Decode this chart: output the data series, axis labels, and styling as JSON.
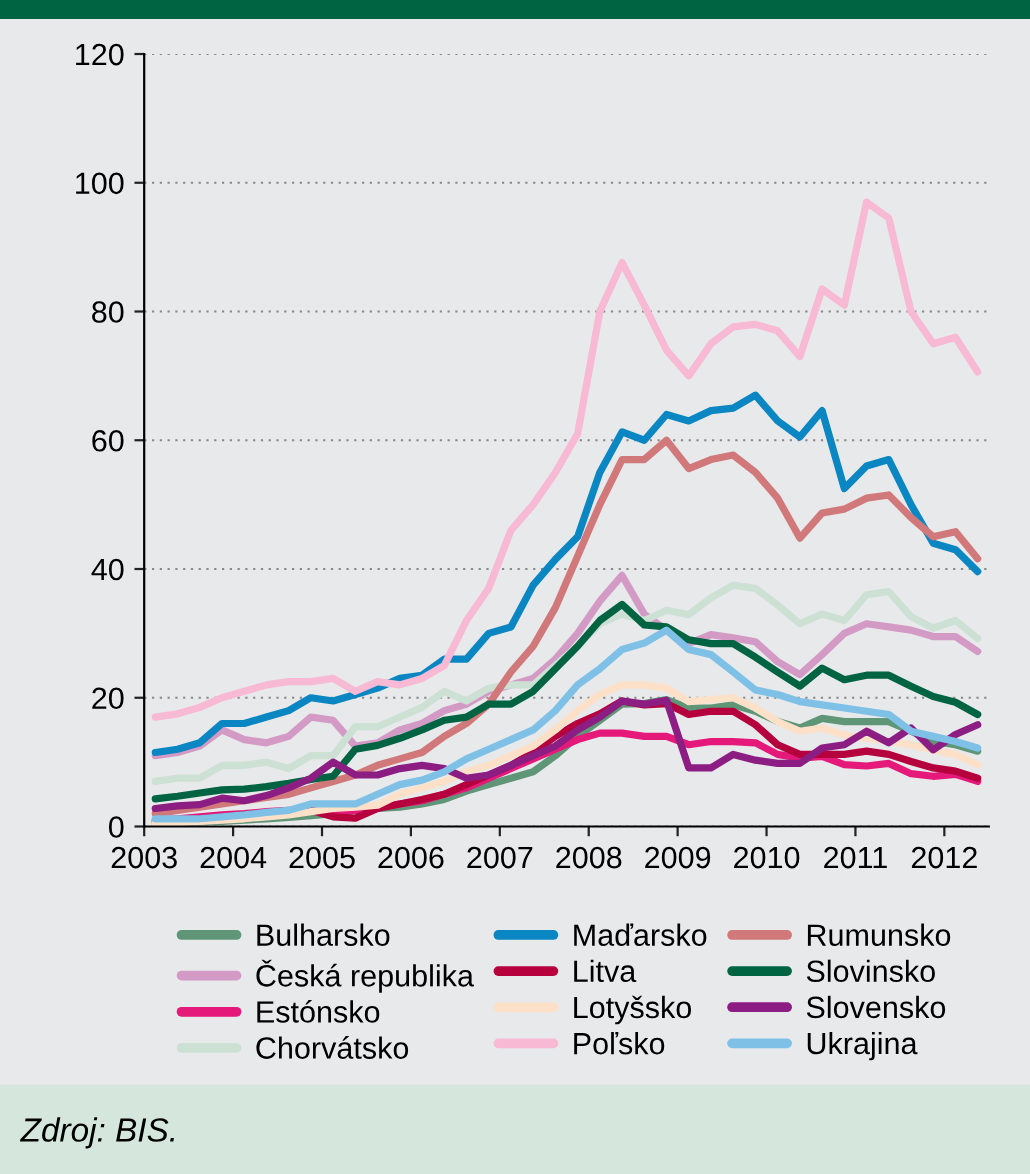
{
  "chart_data": {
    "type": "line",
    "x": [
      2003.125,
      2003.375,
      2003.625,
      2003.875,
      2004.125,
      2004.375,
      2004.625,
      2004.875,
      2005.125,
      2005.375,
      2005.625,
      2005.875,
      2006.125,
      2006.375,
      2006.625,
      2006.875,
      2007.125,
      2007.375,
      2007.625,
      2007.875,
      2008.125,
      2008.375,
      2008.625,
      2008.875,
      2009.125,
      2009.375,
      2009.625,
      2009.875,
      2010.125,
      2010.375,
      2010.625,
      2010.875,
      2011.125,
      2011.375,
      2011.625,
      2011.875,
      2012.125,
      2012.375
    ],
    "series": [
      {
        "name": "Bulharsko",
        "color": "#5f9678",
        "values": [
          0.5,
          0.6,
          0.7,
          0.8,
          1,
          1.2,
          1.4,
          1.7,
          2,
          2.5,
          2.8,
          3,
          3.5,
          4.2,
          5.5,
          6.5,
          7.5,
          8.5,
          11,
          14,
          16.5,
          19,
          19.1,
          19.7,
          18.4,
          18.4,
          18.9,
          17.9,
          16.3,
          15.3,
          16.8,
          16.3,
          16.3,
          16.3,
          14.8,
          13.2,
          12.7,
          11.7
        ]
      },
      {
        "name": "Česká republika",
        "color": "#d49ac6",
        "values": [
          11,
          11.5,
          12.5,
          15,
          13.5,
          13,
          14,
          17,
          16.5,
          12.5,
          13,
          15,
          16,
          18,
          19,
          21,
          22,
          23,
          26,
          30,
          35,
          39,
          33,
          30.5,
          28.4,
          29.8,
          29.3,
          28.7,
          25.6,
          23.6,
          26.7,
          30,
          31.5,
          31,
          30.5,
          29.5,
          29.5,
          27.2
        ]
      },
      {
        "name": "Estónsko",
        "color": "#e5197a",
        "values": [
          1,
          1.2,
          1.5,
          1.8,
          2,
          2.3,
          2.5,
          2.5,
          2.5,
          2.5,
          3,
          3.5,
          4,
          5,
          6,
          7.5,
          9,
          10.5,
          12,
          13.5,
          14.5,
          14.5,
          14,
          14,
          12.7,
          13.2,
          13.2,
          13,
          11.2,
          10.6,
          10.9,
          9.6,
          9.4,
          9.8,
          8.2,
          7.8,
          8.1,
          7
        ]
      },
      {
        "name": "Chorvátsko",
        "color": "#cde0d4",
        "values": [
          7,
          7.5,
          7.5,
          9.5,
          9.5,
          10,
          9,
          11,
          11,
          15.5,
          15.5,
          17,
          18.5,
          21,
          19.5,
          21.5,
          22,
          22,
          25,
          28,
          31.5,
          33,
          32,
          33.6,
          32.9,
          35.5,
          37.5,
          37,
          34.4,
          31.5,
          33,
          32,
          36,
          36.5,
          32.6,
          30.8,
          32,
          29.2
        ]
      },
      {
        "name": "Maďarsko",
        "color": "#0a86c2",
        "values": [
          11.5,
          12,
          13,
          16,
          16,
          17,
          18,
          20,
          19.5,
          20.5,
          21.5,
          23,
          23.5,
          26,
          26,
          30,
          31,
          37.5,
          41.5,
          45,
          55,
          61.3,
          60,
          64,
          63,
          64.6,
          65,
          67,
          63,
          60.5,
          64.6,
          52.5,
          56,
          57,
          50,
          44,
          43,
          39.6
        ]
      },
      {
        "name": "Litva",
        "color": "#b5003d",
        "values": [
          0.8,
          1,
          1.2,
          1.5,
          1.8,
          2,
          2.2,
          2.5,
          1.5,
          1.3,
          2.8,
          3.5,
          4.2,
          5,
          6.5,
          8,
          9.5,
          11.5,
          14,
          16,
          17.5,
          19.5,
          18.9,
          19.1,
          17.4,
          17.9,
          17.9,
          15.8,
          12.7,
          11.2,
          11.2,
          11.2,
          11.7,
          11.2,
          10.1,
          9.1,
          8.6,
          7.5
        ]
      },
      {
        "name": "Lotyšsko",
        "color": "#fde0c8",
        "values": [
          0.5,
          0.6,
          0.8,
          1,
          1.2,
          1.5,
          1.8,
          2.3,
          2.8,
          3,
          3.3,
          5,
          6,
          7,
          8.5,
          9.5,
          11,
          12.5,
          15,
          18,
          20.5,
          22,
          22,
          21.5,
          19.4,
          19.7,
          20,
          18.4,
          16.3,
          14.8,
          15.3,
          14.2,
          13.7,
          13.2,
          12.7,
          11.9,
          11.2,
          9.6
        ]
      },
      {
        "name": "Poľsko",
        "color": "#f7b9d3",
        "values": [
          17,
          17.5,
          18.5,
          20,
          21,
          22,
          22.5,
          22.5,
          23,
          21,
          22.5,
          22,
          23,
          25,
          32,
          37,
          46,
          50,
          55,
          61,
          80,
          87.6,
          81,
          74,
          70,
          75,
          77.6,
          78,
          77,
          73,
          83.5,
          81,
          97,
          94.5,
          80,
          75,
          76,
          70.6
        ]
      },
      {
        "name": "Rumunsko",
        "color": "#d0787a",
        "values": [
          2,
          2.5,
          3,
          3.5,
          4,
          4.5,
          5,
          6,
          7,
          8,
          9.5,
          10.5,
          11.5,
          14,
          16,
          19,
          24,
          28,
          34,
          42,
          50,
          57,
          57,
          60,
          55.6,
          57,
          57.7,
          55,
          51,
          44.8,
          48.7,
          49.3,
          51,
          51.5,
          48,
          45,
          45.8,
          41.6
        ]
      },
      {
        "name": "Slovinsko",
        "color": "#006442",
        "values": [
          4.3,
          4.7,
          5.2,
          5.7,
          5.8,
          6.2,
          6.7,
          7.3,
          7.8,
          12,
          12.6,
          13.7,
          15,
          16.5,
          17,
          19,
          19,
          21,
          24.5,
          28,
          32,
          34.5,
          31.3,
          31,
          29,
          28.4,
          28.4,
          26.3,
          24,
          21.8,
          24.6,
          22.8,
          23.5,
          23.5,
          21.8,
          20.2,
          19.3,
          17.4
        ]
      },
      {
        "name": "Slovensko",
        "color": "#8c1d82",
        "values": [
          2.8,
          3.2,
          3.4,
          4.4,
          4,
          4.8,
          6,
          7.5,
          10,
          8,
          8,
          9,
          9.5,
          9,
          7.5,
          8,
          9.5,
          11,
          12.5,
          15,
          17,
          19.5,
          19,
          19.6,
          9.1,
          9.1,
          11.2,
          10.3,
          9.8,
          9.8,
          12.2,
          12.7,
          14.8,
          13,
          15.3,
          11.9,
          14.3,
          15.8
        ]
      },
      {
        "name": "Ukrajina",
        "color": "#7fc1e6",
        "values": [
          1.2,
          1.2,
          1.2,
          1.5,
          1.8,
          2.2,
          2.5,
          3.5,
          3.5,
          3.5,
          5,
          6.5,
          7.2,
          8.5,
          10.5,
          12,
          13.5,
          15,
          18,
          22,
          24.5,
          27.5,
          28.5,
          30.5,
          27.5,
          26.7,
          24,
          21.2,
          20.5,
          19.4,
          18.9,
          18.4,
          17.9,
          17.4,
          14.8,
          14,
          13.2,
          12.2
        ]
      }
    ],
    "xlim": [
      2003,
      2012.5
    ],
    "xticks": [
      2003,
      2004,
      2005,
      2006,
      2007,
      2008,
      2009,
      2010,
      2011,
      2012
    ],
    "ylim": [
      0,
      120
    ],
    "yticks": [
      0,
      20,
      40,
      60,
      80,
      100,
      120
    ],
    "grid": "y",
    "legend": "bottom",
    "line_style": "solid",
    "marker": "none",
    "annotations": [
      "Zdroj: BIS."
    ]
  }
}
